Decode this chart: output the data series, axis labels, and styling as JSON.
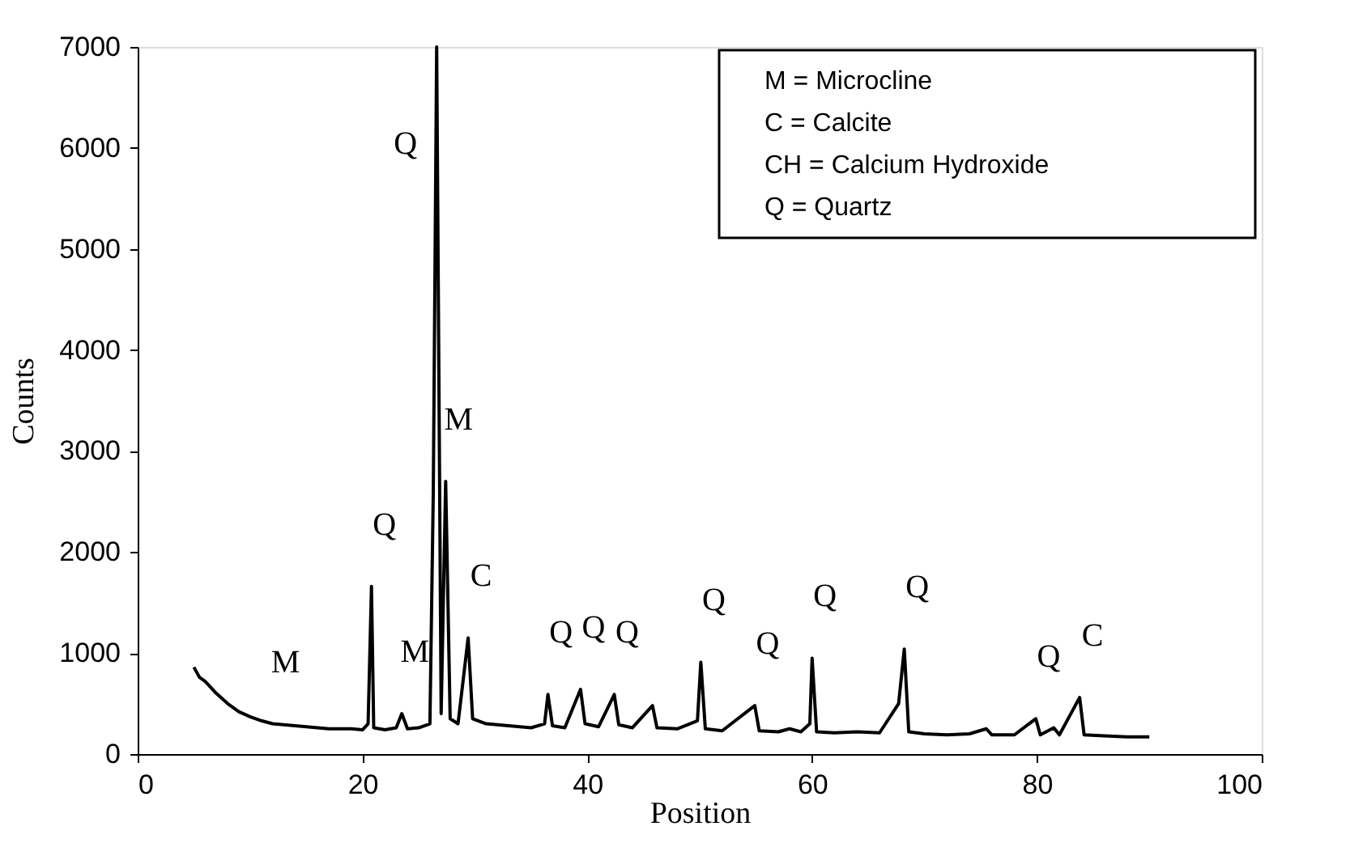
{
  "chart_data": {
    "type": "line",
    "xlabel": "Position",
    "ylabel": "Counts",
    "xlim": [
      0,
      100
    ],
    "xticks": [
      0,
      20,
      40,
      60,
      80,
      100
    ],
    "ylim": [
      0,
      7000
    ],
    "yticks": [
      0,
      1000,
      2000,
      3000,
      4000,
      5000,
      6000,
      7000
    ],
    "grid": false,
    "marker": "none",
    "line_style": "solid",
    "series": [
      {
        "color": "#000000",
        "x": [
          5,
          5.5,
          6,
          7,
          8,
          9,
          10,
          11,
          12,
          13,
          14,
          15,
          16,
          17,
          18,
          19,
          20,
          20.5,
          20.8,
          21.0,
          22,
          23,
          23.5,
          24,
          25,
          26,
          26.3,
          26.6,
          27.0,
          27.4,
          27.8,
          28.5,
          29.4,
          29.8,
          31,
          33,
          35,
          36.2,
          36.5,
          36.9,
          38,
          39.4,
          39.8,
          41,
          42.4,
          42.8,
          44,
          45.8,
          46.2,
          48,
          49.8,
          50.1,
          50.5,
          52,
          54.9,
          55.3,
          57,
          58,
          59,
          59.8,
          60.0,
          60.4,
          62,
          64,
          66,
          67.7,
          68.2,
          68.6,
          70,
          72,
          74,
          75.5,
          76,
          78,
          79.9,
          80.3,
          81.5,
          82,
          83.8,
          84.2,
          86,
          88,
          90
        ],
        "values": [
          860,
          760,
          720,
          600,
          500,
          420,
          370,
          330,
          300,
          290,
          280,
          270,
          260,
          250,
          250,
          250,
          240,
          300,
          1660,
          260,
          240,
          260,
          400,
          250,
          260,
          300,
          2600,
          7000,
          400,
          2700,
          350,
          300,
          1150,
          350,
          300,
          280,
          260,
          300,
          590,
          280,
          260,
          640,
          300,
          270,
          590,
          290,
          260,
          480,
          260,
          250,
          330,
          910,
          250,
          230,
          480,
          230,
          220,
          250,
          220,
          300,
          950,
          220,
          210,
          220,
          210,
          500,
          1040,
          220,
          200,
          190,
          200,
          250,
          190,
          190,
          350,
          190,
          260,
          190,
          560,
          190,
          180,
          170,
          170
        ]
      }
    ],
    "annotations": [
      {
        "text": "Q",
        "x": 26.6,
        "y": 7000
      },
      {
        "text": "M",
        "x": 27.4,
        "y": 2700
      },
      {
        "text": "C",
        "x": 29.4,
        "y": 1150
      },
      {
        "text": "Q",
        "x": 20.8,
        "y": 1660
      },
      {
        "text": "M",
        "x": 12,
        "y": 300
      },
      {
        "text": "M",
        "x": 23.5,
        "y": 400
      },
      {
        "text": "Q",
        "x": 36.5,
        "y": 590
      },
      {
        "text": "Q",
        "x": 39.4,
        "y": 640
      },
      {
        "text": "Q",
        "x": 42.4,
        "y": 590
      },
      {
        "text": "Q",
        "x": 50.1,
        "y": 910
      },
      {
        "text": "Q",
        "x": 54.9,
        "y": 480
      },
      {
        "text": "Q",
        "x": 60.0,
        "y": 950
      },
      {
        "text": "Q",
        "x": 68.2,
        "y": 1040
      },
      {
        "text": "Q",
        "x": 79.9,
        "y": 350
      },
      {
        "text": "C",
        "x": 83.8,
        "y": 560
      },
      "M    = Microcline",
      "C     = Calcite",
      "CH  = Calcium Hydroxide",
      "Q     = Quartz"
    ]
  }
}
